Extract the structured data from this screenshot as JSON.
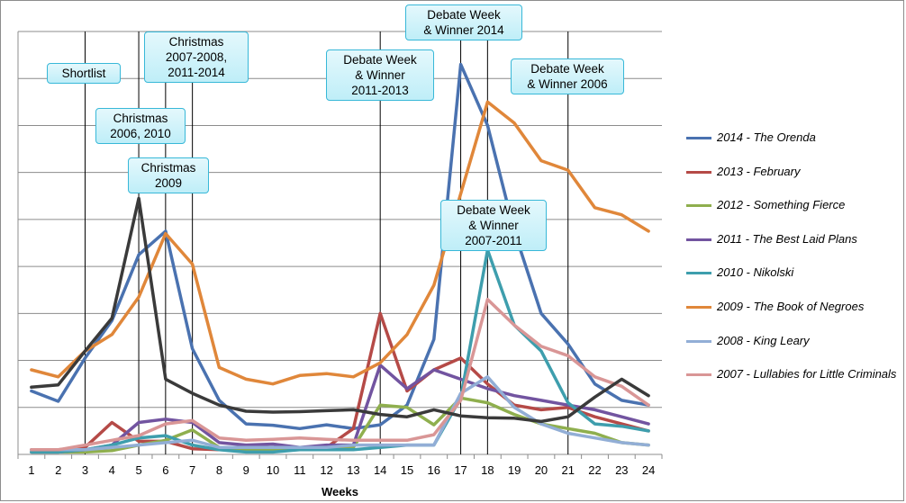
{
  "chart_data": {
    "type": "line",
    "title": "",
    "xlabel": "Weeks",
    "ylabel": "",
    "x": [
      1,
      2,
      3,
      4,
      5,
      6,
      7,
      8,
      9,
      10,
      11,
      12,
      13,
      14,
      15,
      16,
      17,
      18,
      19,
      20,
      21,
      22,
      23,
      24
    ],
    "ylim": [
      0,
      9
    ],
    "grid": true,
    "legend_position": "right",
    "series": [
      {
        "name": "2014 - The Orenda",
        "color": "#4a72b0",
        "values": [
          1.35,
          1.13,
          2.05,
          2.85,
          4.25,
          4.75,
          2.25,
          1.15,
          0.65,
          0.62,
          0.55,
          0.63,
          0.55,
          0.63,
          1.05,
          2.45,
          8.3,
          7.0,
          4.75,
          3.0,
          2.35,
          1.5,
          1.15,
          1.05
        ]
      },
      {
        "name": "2013 - February",
        "color": "#b54a47",
        "values": [
          0.1,
          0.1,
          0.15,
          0.68,
          0.28,
          0.28,
          0.12,
          0.1,
          0.1,
          0.1,
          0.1,
          0.15,
          0.55,
          3.0,
          1.35,
          1.8,
          2.05,
          1.5,
          1.05,
          0.95,
          1.0,
          0.8,
          0.65,
          0.5
        ]
      },
      {
        "name": "2012 - Something Fierce",
        "color": "#8faf4e",
        "values": [
          0.05,
          0.05,
          0.05,
          0.08,
          0.2,
          0.3,
          0.52,
          0.15,
          0.1,
          0.1,
          0.1,
          0.1,
          0.15,
          1.05,
          1.0,
          0.63,
          1.2,
          1.1,
          0.85,
          0.65,
          0.55,
          0.45,
          0.25,
          0.2
        ]
      },
      {
        "name": "2011 - The Best Laid Plans",
        "color": "#7254a0",
        "values": [
          0.05,
          0.05,
          0.1,
          0.2,
          0.68,
          0.75,
          0.68,
          0.25,
          0.2,
          0.22,
          0.15,
          0.2,
          0.2,
          1.9,
          1.4,
          1.8,
          1.6,
          1.4,
          1.25,
          1.15,
          1.05,
          0.95,
          0.8,
          0.65
        ]
      },
      {
        "name": "2010 - Nikolski",
        "color": "#3e9ead",
        "values": [
          0.05,
          0.05,
          0.1,
          0.2,
          0.35,
          0.4,
          0.2,
          0.1,
          0.05,
          0.05,
          0.1,
          0.1,
          0.1,
          0.15,
          0.2,
          0.2,
          1.2,
          4.35,
          2.75,
          2.2,
          1.1,
          0.65,
          0.6,
          0.5
        ]
      },
      {
        "name": "2009 - The Book of Negroes",
        "color": "#e0873a",
        "values": [
          1.8,
          1.65,
          2.2,
          2.55,
          3.35,
          4.7,
          4.05,
          1.85,
          1.6,
          1.5,
          1.68,
          1.72,
          1.65,
          1.95,
          2.55,
          3.6,
          5.55,
          7.5,
          7.05,
          6.25,
          6.05,
          5.25,
          5.1,
          4.75
        ]
      },
      {
        "name": "2008 - King Leary",
        "color": "#92aed6",
        "values": [
          0.1,
          0.1,
          0.1,
          0.15,
          0.2,
          0.25,
          0.3,
          0.15,
          0.15,
          0.15,
          0.15,
          0.15,
          0.2,
          0.2,
          0.2,
          0.2,
          1.3,
          1.65,
          1.0,
          0.65,
          0.45,
          0.35,
          0.25,
          0.2
        ]
      },
      {
        "name": "2007 - Lullabies for Little Criminals",
        "color": "#d99696",
        "values": [
          0.1,
          0.1,
          0.2,
          0.3,
          0.4,
          0.65,
          0.72,
          0.35,
          0.3,
          0.32,
          0.35,
          0.32,
          0.3,
          0.3,
          0.3,
          0.42,
          1.15,
          3.3,
          2.75,
          2.3,
          2.1,
          1.65,
          1.45,
          1.05
        ]
      },
      {
        "name": "",
        "color": "#3a3a3a",
        "values": [
          1.43,
          1.48,
          2.2,
          2.9,
          5.45,
          1.6,
          1.3,
          1.05,
          0.92,
          0.9,
          0.91,
          0.93,
          0.95,
          0.85,
          0.8,
          0.95,
          0.82,
          0.78,
          0.77,
          0.7,
          0.8,
          1.22,
          1.6,
          1.25
        ]
      }
    ],
    "events": [
      {
        "week": 3,
        "label": "Shortlist"
      },
      {
        "week": 5,
        "label": "Christmas\n2006, 2010"
      },
      {
        "week": 5,
        "label": "Christmas\n2009"
      },
      {
        "week": 6,
        "label": "Christmas\n2007-2008,\n2011-2014"
      },
      {
        "week": 7,
        "label": ""
      },
      {
        "week": 14,
        "label": "Debate Week\n& Winner\n2011-2013"
      },
      {
        "week": 17,
        "label": "Debate Week\n& Winner 2014"
      },
      {
        "week": 18,
        "label": "Debate Week\n& Winner\n2007-2011"
      },
      {
        "week": 21,
        "label": "Debate Week\n& Winner 2006"
      }
    ]
  }
}
